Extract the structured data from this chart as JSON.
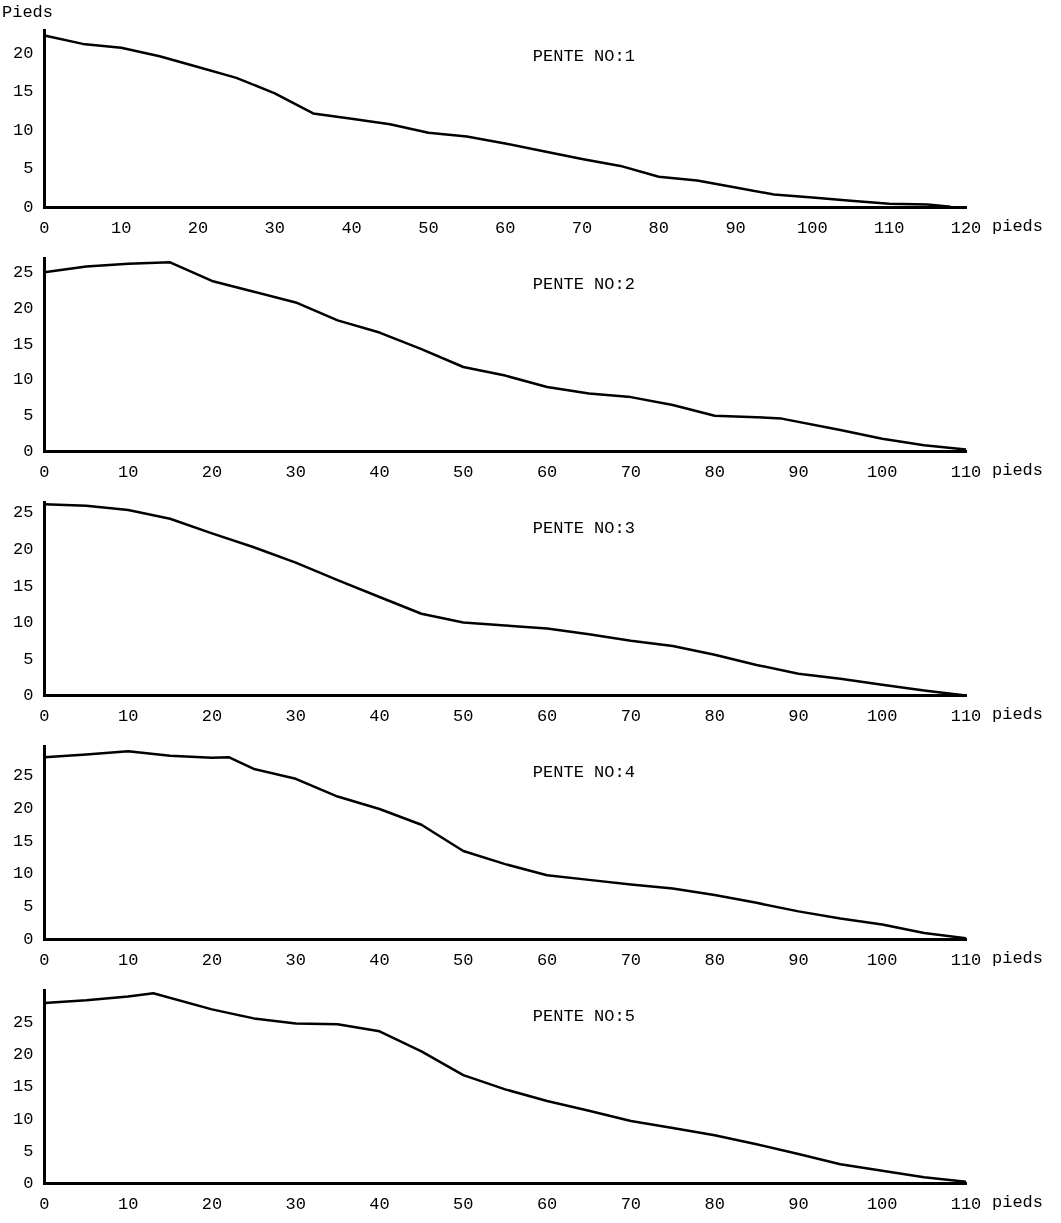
{
  "chart_data": [
    {
      "type": "line",
      "title": "PENTE NO:1",
      "xlabel": "pieds",
      "ylabel": "Pieds",
      "color": "#000000",
      "xlim": [
        0,
        120
      ],
      "xticks": [
        0,
        10,
        20,
        30,
        40,
        50,
        60,
        70,
        80,
        90,
        100,
        110,
        120
      ],
      "ylim": [
        0,
        23
      ],
      "yticks": [
        0,
        5,
        10,
        15,
        20
      ],
      "grid": false,
      "x": [
        0,
        5,
        10,
        15,
        20,
        25,
        30,
        35,
        40,
        45,
        50,
        55,
        60,
        65,
        70,
        75,
        80,
        85,
        90,
        95,
        100,
        105,
        110,
        115,
        118
      ],
      "values": [
        22.3,
        21.2,
        20.7,
        19.6,
        18.2,
        16.8,
        14.8,
        12.2,
        11.5,
        10.8,
        9.7,
        9.2,
        8.3,
        7.3,
        6.3,
        5.4,
        4.0,
        3.5,
        2.6,
        1.7,
        1.3,
        0.9,
        0.5,
        0.4,
        0.1
      ]
    },
    {
      "type": "line",
      "title": "PENTE NO:2",
      "xlabel": "pieds",
      "color": "#000000",
      "xlim": [
        0,
        110
      ],
      "xticks": [
        0,
        10,
        20,
        30,
        40,
        50,
        60,
        70,
        80,
        90,
        100,
        110
      ],
      "ylim": [
        0,
        27
      ],
      "yticks": [
        0,
        5,
        10,
        15,
        20,
        25
      ],
      "grid": false,
      "x": [
        0,
        5,
        10,
        15,
        20,
        25,
        30,
        35,
        40,
        45,
        50,
        55,
        60,
        65,
        70,
        75,
        80,
        85,
        88,
        95,
        100,
        105,
        110
      ],
      "values": [
        25,
        25.8,
        26.2,
        26.4,
        23.8,
        22.3,
        20.8,
        18.3,
        16.6,
        14.3,
        11.8,
        10.6,
        9.0,
        8.1,
        7.6,
        6.5,
        5.0,
        4.8,
        4.6,
        3.0,
        1.8,
        0.9,
        0.3
      ]
    },
    {
      "type": "line",
      "title": "PENTE NO:3",
      "xlabel": "pieds",
      "color": "#000000",
      "xlim": [
        0,
        110
      ],
      "xticks": [
        0,
        10,
        20,
        30,
        40,
        50,
        60,
        70,
        80,
        90,
        100,
        110
      ],
      "ylim": [
        0,
        26.5
      ],
      "yticks": [
        0,
        5,
        10,
        15,
        20,
        25
      ],
      "grid": false,
      "x": [
        0,
        5,
        10,
        15,
        20,
        25,
        30,
        35,
        40,
        45,
        50,
        55,
        60,
        65,
        70,
        75,
        80,
        85,
        90,
        95,
        100,
        105,
        110
      ],
      "values": [
        26.2,
        26,
        25.4,
        24.2,
        22.2,
        20.3,
        18.2,
        15.8,
        13.5,
        11.2,
        10,
        9.6,
        9.2,
        8.4,
        7.5,
        6.8,
        5.6,
        4.2,
        3.0,
        2.3,
        1.5,
        0.7,
        0
      ]
    },
    {
      "type": "line",
      "title": "PENTE NO:4",
      "xlabel": "pieds",
      "color": "#000000",
      "xlim": [
        0,
        110
      ],
      "xticks": [
        0,
        10,
        20,
        30,
        40,
        50,
        60,
        70,
        80,
        90,
        100,
        110
      ],
      "ylim": [
        0,
        29.5
      ],
      "yticks": [
        0,
        5,
        10,
        15,
        20,
        25
      ],
      "grid": false,
      "x": [
        0,
        5,
        10,
        15,
        20,
        22,
        25,
        30,
        35,
        40,
        45,
        50,
        55,
        60,
        65,
        70,
        75,
        80,
        85,
        90,
        95,
        100,
        105,
        110
      ],
      "values": [
        27.8,
        28.2,
        28.7,
        28,
        27.7,
        27.8,
        26,
        24.5,
        21.8,
        19.9,
        17.5,
        13.5,
        11.5,
        9.8,
        9.1,
        8.4,
        7.8,
        6.8,
        5.6,
        4.3,
        3.2,
        2.3,
        1.0,
        0.2
      ]
    },
    {
      "type": "line",
      "title": "PENTE NO:5",
      "xlabel": "pieds",
      "color": "#000000",
      "xlim": [
        0,
        110
      ],
      "xticks": [
        0,
        10,
        20,
        30,
        40,
        50,
        60,
        70,
        80,
        90,
        100,
        110
      ],
      "ylim": [
        0,
        30
      ],
      "yticks": [
        0,
        5,
        10,
        15,
        20,
        25
      ],
      "grid": false,
      "x": [
        0,
        5,
        10,
        13,
        20,
        25,
        30,
        35,
        40,
        45,
        50,
        55,
        60,
        65,
        70,
        75,
        80,
        85,
        90,
        95,
        100,
        105,
        110
      ],
      "values": [
        28,
        28.4,
        29,
        29.5,
        27,
        25.6,
        24.8,
        24.7,
        23.6,
        20.5,
        16.8,
        14.6,
        12.8,
        11.3,
        9.7,
        8.6,
        7.5,
        6.1,
        4.6,
        3.0,
        2.0,
        1.0,
        0.3
      ]
    }
  ]
}
